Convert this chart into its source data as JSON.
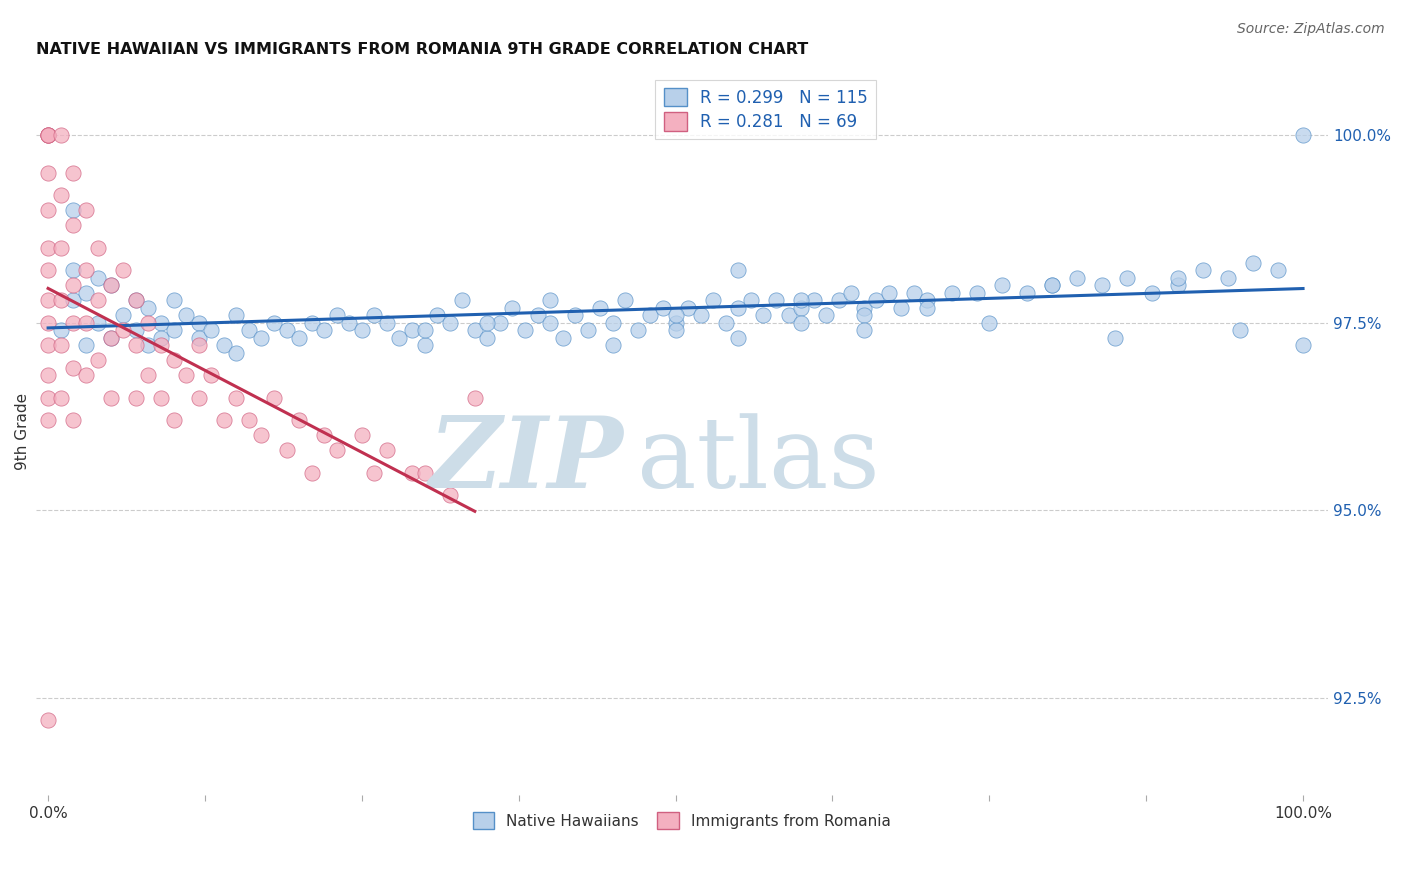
{
  "title": "NATIVE HAWAIIAN VS IMMIGRANTS FROM ROMANIA 9TH GRADE CORRELATION CHART",
  "source": "Source: ZipAtlas.com",
  "ylabel": "9th Grade",
  "right_yticks": [
    92.5,
    95.0,
    97.5,
    100.0
  ],
  "right_yticklabels": [
    "92.5%",
    "95.0%",
    "97.5%",
    "100.0%"
  ],
  "R_blue": 0.299,
  "N_blue": 115,
  "R_pink": 0.281,
  "N_pink": 69,
  "blue_color": "#b8d0ea",
  "blue_edge": "#5590c8",
  "pink_color": "#f4b0c0",
  "pink_edge": "#d06080",
  "trendline_blue": "#2060b0",
  "trendline_pink": "#c03050",
  "watermark_zip_color": "#cddde8",
  "watermark_atlas_color": "#cddde8",
  "legend_blue_series": "Native Hawaiians",
  "legend_pink_series": "Immigrants from Romania",
  "blue_x": [
    0.01,
    0.02,
    0.02,
    0.02,
    0.03,
    0.03,
    0.04,
    0.04,
    0.05,
    0.05,
    0.06,
    0.07,
    0.07,
    0.08,
    0.08,
    0.09,
    0.09,
    0.1,
    0.1,
    0.11,
    0.12,
    0.12,
    0.13,
    0.14,
    0.15,
    0.15,
    0.16,
    0.17,
    0.18,
    0.19,
    0.2,
    0.21,
    0.22,
    0.23,
    0.24,
    0.25,
    0.26,
    0.27,
    0.28,
    0.29,
    0.3,
    0.31,
    0.32,
    0.33,
    0.34,
    0.35,
    0.36,
    0.37,
    0.38,
    0.39,
    0.4,
    0.41,
    0.42,
    0.43,
    0.44,
    0.45,
    0.46,
    0.47,
    0.48,
    0.49,
    0.5,
    0.51,
    0.52,
    0.53,
    0.54,
    0.55,
    0.56,
    0.57,
    0.58,
    0.59,
    0.6,
    0.61,
    0.62,
    0.63,
    0.64,
    0.65,
    0.66,
    0.67,
    0.68,
    0.69,
    0.7,
    0.72,
    0.74,
    0.76,
    0.78,
    0.8,
    0.82,
    0.84,
    0.86,
    0.88,
    0.9,
    0.92,
    0.94,
    0.96,
    0.98,
    1.0,
    0.5,
    0.55,
    0.6,
    0.65,
    0.7,
    0.75,
    0.8,
    0.85,
    0.9,
    0.95,
    1.0,
    0.3,
    0.35,
    0.4,
    0.45,
    0.5,
    0.55,
    0.6,
    0.65
  ],
  "blue_y": [
    97.4,
    97.8,
    98.2,
    99.0,
    97.2,
    97.9,
    97.5,
    98.1,
    97.3,
    98.0,
    97.6,
    97.4,
    97.8,
    97.2,
    97.7,
    97.5,
    97.3,
    97.4,
    97.8,
    97.6,
    97.5,
    97.3,
    97.4,
    97.2,
    97.6,
    97.1,
    97.4,
    97.3,
    97.5,
    97.4,
    97.3,
    97.5,
    97.4,
    97.6,
    97.5,
    97.4,
    97.6,
    97.5,
    97.3,
    97.4,
    97.2,
    97.6,
    97.5,
    97.8,
    97.4,
    97.3,
    97.5,
    97.7,
    97.4,
    97.6,
    97.5,
    97.3,
    97.6,
    97.4,
    97.7,
    97.5,
    97.8,
    97.4,
    97.6,
    97.7,
    97.5,
    97.7,
    97.6,
    97.8,
    97.5,
    97.7,
    97.8,
    97.6,
    97.8,
    97.6,
    97.7,
    97.8,
    97.6,
    97.8,
    97.9,
    97.7,
    97.8,
    97.9,
    97.7,
    97.9,
    97.8,
    97.9,
    97.9,
    98.0,
    97.9,
    98.0,
    98.1,
    98.0,
    98.1,
    97.9,
    98.0,
    98.2,
    98.1,
    98.3,
    98.2,
    100.0,
    97.4,
    98.2,
    97.8,
    97.6,
    97.7,
    97.5,
    98.0,
    97.3,
    98.1,
    97.4,
    97.2,
    97.4,
    97.5,
    97.8,
    97.2,
    97.6,
    97.3,
    97.5,
    97.4
  ],
  "pink_x": [
    0.0,
    0.0,
    0.0,
    0.0,
    0.0,
    0.0,
    0.0,
    0.0,
    0.0,
    0.0,
    0.0,
    0.0,
    0.0,
    0.0,
    0.0,
    0.01,
    0.01,
    0.01,
    0.01,
    0.01,
    0.01,
    0.02,
    0.02,
    0.02,
    0.02,
    0.02,
    0.02,
    0.03,
    0.03,
    0.03,
    0.03,
    0.04,
    0.04,
    0.04,
    0.05,
    0.05,
    0.05,
    0.06,
    0.06,
    0.07,
    0.07,
    0.07,
    0.08,
    0.08,
    0.09,
    0.09,
    0.1,
    0.1,
    0.11,
    0.12,
    0.12,
    0.13,
    0.14,
    0.15,
    0.16,
    0.17,
    0.18,
    0.19,
    0.2,
    0.21,
    0.22,
    0.23,
    0.25,
    0.26,
    0.27,
    0.29,
    0.3,
    0.32,
    0.34
  ],
  "pink_y": [
    100.0,
    100.0,
    100.0,
    100.0,
    99.5,
    99.0,
    98.5,
    98.2,
    97.8,
    97.5,
    97.2,
    96.8,
    96.5,
    96.2,
    92.2,
    100.0,
    99.2,
    98.5,
    97.8,
    97.2,
    96.5,
    99.5,
    98.8,
    98.0,
    97.5,
    96.9,
    96.2,
    99.0,
    98.2,
    97.5,
    96.8,
    98.5,
    97.8,
    97.0,
    98.0,
    97.3,
    96.5,
    98.2,
    97.4,
    97.8,
    97.2,
    96.5,
    97.5,
    96.8,
    97.2,
    96.5,
    97.0,
    96.2,
    96.8,
    97.2,
    96.5,
    96.8,
    96.2,
    96.5,
    96.2,
    96.0,
    96.5,
    95.8,
    96.2,
    95.5,
    96.0,
    95.8,
    96.0,
    95.5,
    95.8,
    95.5,
    95.5,
    95.2,
    96.5
  ]
}
